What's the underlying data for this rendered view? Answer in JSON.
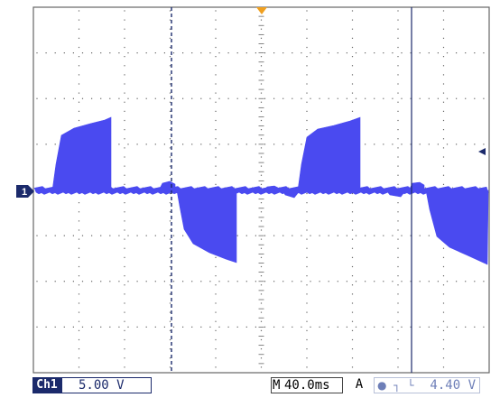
{
  "scope": {
    "channel_label": "Ch1",
    "channel_marker": "1",
    "volts_per_div": "5.00 V",
    "timebase_prefix": "M",
    "timebase": "40.0ms",
    "trigger_mode": "A",
    "trigger_level": "4.40 V",
    "colors": {
      "trace": "#4a4af0",
      "grid": "#555555",
      "cursor": "#1b2a6b",
      "trigger_marker": "#f0a020",
      "background": "#ffffff"
    },
    "icons": {
      "channel_marker": "ground-level-arrow-icon",
      "trigger_pointer": "trigger-position-icon",
      "trigger_level_arrow": "trigger-level-arrow-icon",
      "trigger_slope": "rising-edge-icon"
    }
  }
}
